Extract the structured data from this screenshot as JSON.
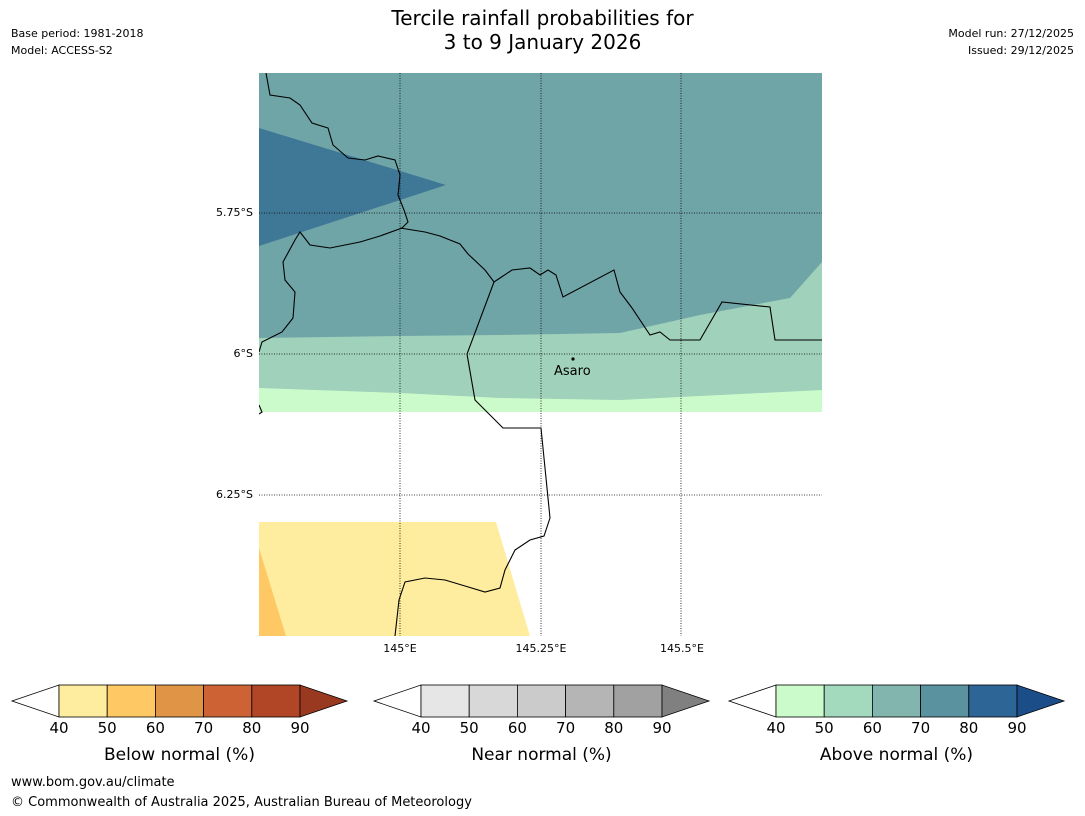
{
  "title": {
    "line1": "Tercile rainfall probabilities for",
    "line2": "3 to 9 January 2026"
  },
  "meta_left": {
    "base_period": "Base period: 1981-2018",
    "model": "Model: ACCESS-S2"
  },
  "meta_right": {
    "model_run": "Model run: 27/12/2025",
    "issued": "Issued: 29/12/2025"
  },
  "map": {
    "lat_labels": [
      "5.75°S",
      "6°S",
      "6.25°S"
    ],
    "lon_labels": [
      "145°E",
      "145.25°E",
      "145.5°E"
    ],
    "place": "Asaro"
  },
  "colorbars": [
    {
      "label": "Below normal (%)",
      "ticks": [
        "40",
        "50",
        "60",
        "70",
        "80",
        "90"
      ],
      "low_color": "#ffffff",
      "colors": [
        "#feed9e",
        "#fec965",
        "#e09446",
        "#cd6334",
        "#b04626"
      ],
      "high_color": "#993a20"
    },
    {
      "label": "Near normal (%)",
      "ticks": [
        "40",
        "50",
        "60",
        "70",
        "80",
        "90"
      ],
      "low_color": "#ffffff",
      "colors": [
        "#e6e6e6",
        "#d8d8d8",
        "#cbcbcb",
        "#b5b5b5",
        "#a1a1a1"
      ],
      "high_color": "#808080"
    },
    {
      "label": "Above normal (%)",
      "ticks": [
        "40",
        "50",
        "60",
        "70",
        "80",
        "90"
      ],
      "low_color": "#ffffff",
      "colors": [
        "#ccfbcb",
        "#a3d9bc",
        "#81b5ad",
        "#5b92a0",
        "#2e6597"
      ],
      "high_color": "#1b4e88"
    }
  ],
  "footer": {
    "url": "www.bom.gov.au/climate",
    "copyright": "© Commonwealth of Australia 2025, Australian Bureau of Meteorology"
  }
}
